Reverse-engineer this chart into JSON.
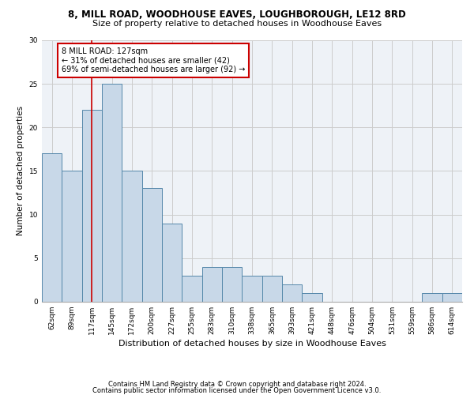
{
  "title1": "8, MILL ROAD, WOODHOUSE EAVES, LOUGHBOROUGH, LE12 8RD",
  "title2": "Size of property relative to detached houses in Woodhouse Eaves",
  "xlabel": "Distribution of detached houses by size in Woodhouse Eaves",
  "ylabel": "Number of detached properties",
  "categories": [
    "62sqm",
    "89sqm",
    "117sqm",
    "145sqm",
    "172sqm",
    "200sqm",
    "227sqm",
    "255sqm",
    "283sqm",
    "310sqm",
    "338sqm",
    "365sqm",
    "393sqm",
    "421sqm",
    "448sqm",
    "476sqm",
    "504sqm",
    "531sqm",
    "559sqm",
    "586sqm",
    "614sqm"
  ],
  "values": [
    17,
    15,
    22,
    25,
    15,
    13,
    9,
    3,
    4,
    4,
    3,
    3,
    2,
    1,
    0,
    0,
    0,
    0,
    0,
    1,
    1
  ],
  "bar_color": "#c8d8e8",
  "bar_edge_color": "#5588aa",
  "bar_edge_width": 0.7,
  "redline_index": 2,
  "redline_color": "#cc0000",
  "annotation_text": "8 MILL ROAD: 127sqm\n← 31% of detached houses are smaller (42)\n69% of semi-detached houses are larger (92) →",
  "annotation_box_color": "#cc0000",
  "annotation_bg": "white",
  "ylim": [
    0,
    30
  ],
  "yticks": [
    0,
    5,
    10,
    15,
    20,
    25,
    30
  ],
  "grid_color": "#cccccc",
  "bg_color": "#eef2f7",
  "footnote1": "Contains HM Land Registry data © Crown copyright and database right 2024.",
  "footnote2": "Contains public sector information licensed under the Open Government Licence v3.0.",
  "title1_fontsize": 8.5,
  "title2_fontsize": 8,
  "xlabel_fontsize": 8,
  "ylabel_fontsize": 7.5,
  "tick_fontsize": 6.5,
  "annotation_fontsize": 7,
  "footnote_fontsize": 6
}
